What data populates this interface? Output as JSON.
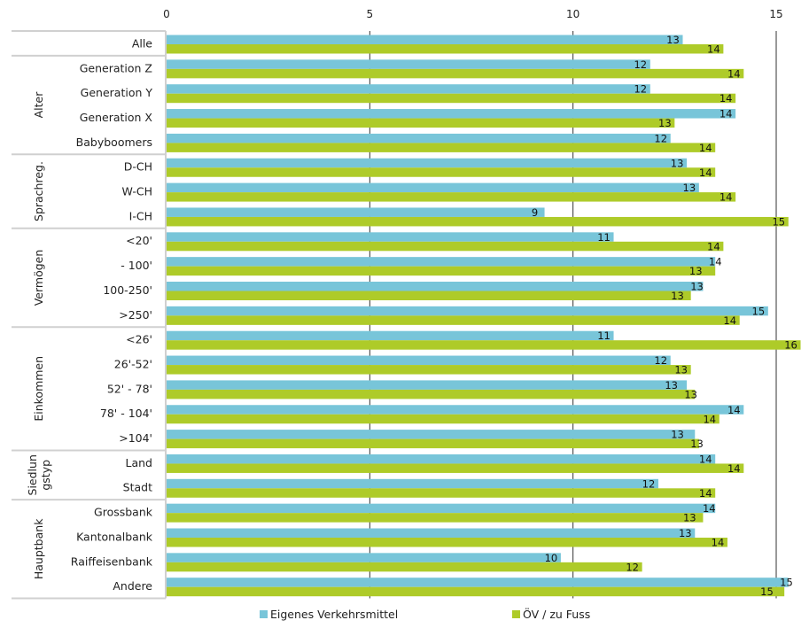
{
  "chart_data": {
    "type": "bar",
    "orientation": "horizontal",
    "title": "",
    "xlabel": "",
    "ylabel": "",
    "xlim": [
      0,
      15
    ],
    "xticks": [
      0,
      5,
      10,
      15
    ],
    "grid": true,
    "legend_position": "bottom",
    "groups": [
      {
        "label": "",
        "categories": [
          "Alle"
        ]
      },
      {
        "label": "Alter",
        "categories": [
          "Generation Z",
          "Generation Y",
          "Generation X",
          "Babyboomers"
        ]
      },
      {
        "label": "Sprachreg.",
        "categories": [
          "D-CH",
          "W-CH",
          "I-CH"
        ]
      },
      {
        "label": "Vermögen",
        "categories": [
          "<20'",
          "- 100'",
          "100-250'",
          ">250'"
        ]
      },
      {
        "label": "Einkommen",
        "categories": [
          "<26'",
          "26'-52'",
          "52' - 78'",
          "78' - 104'",
          ">104'"
        ]
      },
      {
        "label": "Siedlun gstyp",
        "label_lines": [
          "Siedlun",
          "gstyp"
        ],
        "categories": [
          "Land",
          "Stadt"
        ]
      },
      {
        "label": "Hauptbank",
        "categories": [
          "Grossbank",
          "Kantonalbank",
          "Raiffeisenbank",
          "Andere"
        ]
      }
    ],
    "categories": [
      "Alle",
      "Generation Z",
      "Generation Y",
      "Generation X",
      "Babyboomers",
      "D-CH",
      "W-CH",
      "I-CH",
      "<20'",
      "- 100'",
      "100-250'",
      ">250'",
      "<26'",
      "26'-52'",
      "52' - 78'",
      "78' - 104'",
      ">104'",
      "Land",
      "Stadt",
      "Grossbank",
      "Kantonalbank",
      "Raiffeisenbank",
      "Andere"
    ],
    "series": [
      {
        "name": "Eigenes Verkehrsmittel",
        "color": "#78C5D9",
        "values": [
          12.7,
          11.9,
          11.9,
          14.0,
          12.4,
          12.8,
          13.1,
          9.3,
          11.0,
          13.5,
          13.2,
          14.8,
          11.0,
          12.4,
          12.8,
          14.2,
          13.0,
          13.5,
          12.1,
          13.5,
          13.0,
          9.7,
          15.3
        ],
        "labels": [
          "13",
          "12",
          "12",
          "14",
          "12",
          "13",
          "13",
          "9",
          "11",
          "14",
          "13",
          "15",
          "11",
          "12",
          "13",
          "14",
          "13",
          "14",
          "12",
          "14",
          "13",
          "10",
          "15"
        ]
      },
      {
        "name": "ÖV / zu Fuss",
        "color": "#AECB29",
        "values": [
          13.7,
          14.2,
          14.0,
          12.5,
          13.5,
          13.5,
          14.0,
          15.3,
          13.7,
          13.5,
          12.9,
          14.1,
          15.6,
          12.9,
          13.0,
          13.6,
          13.1,
          14.2,
          13.5,
          13.2,
          13.8,
          11.7,
          15.2
        ],
        "labels": [
          "14",
          "14",
          "14",
          "13",
          "14",
          "14",
          "14",
          "15",
          "14",
          "13",
          "13",
          "14",
          "16",
          "13",
          "13",
          "14",
          "13",
          "14",
          "14",
          "13",
          "14",
          "12",
          "15"
        ]
      }
    ]
  }
}
